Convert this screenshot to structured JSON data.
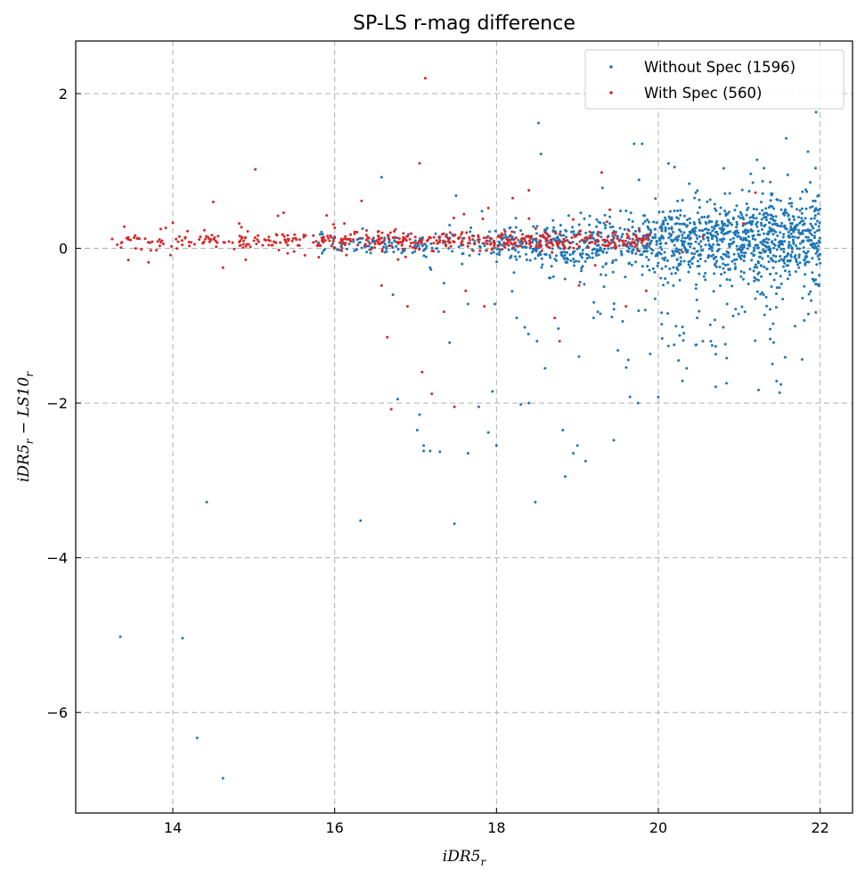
{
  "chart_data": {
    "type": "scatter",
    "title": "SP-LS r-mag difference",
    "xlabel_main": "iDR5",
    "xlabel_sub": "r",
    "ylabel_parts": [
      "iDR5",
      "r",
      " − LS10",
      "r"
    ],
    "xlim": [
      12.8,
      22.4
    ],
    "ylim": [
      -7.3,
      2.68
    ],
    "xticks": [
      14,
      16,
      18,
      20,
      22
    ],
    "yticks": [
      2,
      0,
      -2,
      -4,
      -6
    ],
    "xtick_labels": [
      "14",
      "16",
      "18",
      "20",
      "22"
    ],
    "ytick_labels": [
      "2",
      "0",
      "−2",
      "−4",
      "−6"
    ],
    "grid": true,
    "legend_position": "top-right",
    "series": [
      {
        "name": "Without Spec (1596)",
        "color": "#1f77b4",
        "count": 1596,
        "points": [
          [
            13.35,
            -5.02
          ],
          [
            14.12,
            -5.04
          ],
          [
            14.3,
            -6.33
          ],
          [
            14.42,
            -3.28
          ],
          [
            14.62,
            -6.85
          ],
          [
            16.32,
            -3.52
          ],
          [
            17.48,
            -3.56
          ],
          [
            18.48,
            -3.28
          ],
          [
            18.85,
            -2.95
          ],
          [
            17.02,
            -2.35
          ],
          [
            17.1,
            -2.55
          ],
          [
            17.1,
            -2.62
          ],
          [
            17.18,
            -2.62
          ],
          [
            17.3,
            -2.63
          ],
          [
            17.05,
            -2.15
          ],
          [
            17.65,
            -2.65
          ],
          [
            17.78,
            -2.05
          ],
          [
            17.9,
            -2.38
          ],
          [
            18.0,
            -2.55
          ],
          [
            17.95,
            -1.85
          ],
          [
            18.3,
            -2.02
          ],
          [
            18.4,
            -2.0
          ],
          [
            16.78,
            -1.95
          ],
          [
            17.42,
            -1.22
          ],
          [
            17.65,
            -0.72
          ],
          [
            17.98,
            -0.72
          ],
          [
            18.25,
            -0.9
          ],
          [
            16.72,
            -0.6
          ],
          [
            16.58,
            0.92
          ],
          [
            17.42,
            0.3
          ],
          [
            17.5,
            0.68
          ],
          [
            17.82,
            0.48
          ],
          [
            17.18,
            -0.25
          ],
          [
            17.35,
            -0.45
          ],
          [
            18.52,
            1.62
          ],
          [
            18.55,
            1.22
          ],
          [
            19.7,
            1.35
          ],
          [
            19.8,
            1.35
          ],
          [
            20.2,
            1.05
          ],
          [
            21.58,
            1.42
          ],
          [
            21.95,
            1.76
          ],
          [
            21.85,
            1.25
          ],
          [
            21.6,
            0.95
          ],
          [
            21.95,
            0.5
          ],
          [
            21.42,
            -0.25
          ],
          [
            21.2,
            -0.65
          ],
          [
            20.35,
            -1.55
          ],
          [
            20.25,
            -1.45
          ],
          [
            20.0,
            -1.92
          ],
          [
            19.75,
            -2.0
          ],
          [
            19.65,
            -1.92
          ],
          [
            19.45,
            -2.48
          ],
          [
            19.0,
            -2.55
          ],
          [
            19.1,
            -2.75
          ],
          [
            18.95,
            -2.65
          ],
          [
            18.82,
            -2.35
          ],
          [
            19.5,
            -1.32
          ],
          [
            19.2,
            -0.9
          ],
          [
            19.02,
            -1.4
          ],
          [
            18.6,
            -1.55
          ],
          [
            18.5,
            -1.2
          ],
          [
            18.35,
            -1.02
          ],
          [
            20.55,
            -1.2
          ],
          [
            20.65,
            -1.2
          ],
          [
            20.85,
            -0.72
          ],
          [
            20.48,
            -0.9
          ],
          [
            21.05,
            -0.4
          ],
          [
            21.3,
            -0.6
          ],
          [
            21.7,
            -0.3
          ],
          [
            21.8,
            -0.15
          ]
        ]
      },
      {
        "name": "With Spec (560)",
        "color": "#d62728",
        "count": 560,
        "points": [
          [
            13.25,
            0.12
          ],
          [
            13.4,
            0.28
          ],
          [
            13.45,
            -0.15
          ],
          [
            13.7,
            -0.18
          ],
          [
            13.85,
            0.25
          ],
          [
            14.0,
            0.33
          ],
          [
            14.2,
            0.08
          ],
          [
            14.45,
            0.12
          ],
          [
            14.5,
            0.6
          ],
          [
            14.62,
            -0.25
          ],
          [
            15.02,
            1.02
          ],
          [
            15.3,
            0.42
          ],
          [
            16.12,
            0.32
          ],
          [
            16.58,
            -0.48
          ],
          [
            16.65,
            -1.15
          ],
          [
            16.7,
            -2.08
          ],
          [
            16.9,
            -0.75
          ],
          [
            17.05,
            1.1
          ],
          [
            17.08,
            -1.6
          ],
          [
            17.12,
            2.2
          ],
          [
            17.2,
            -1.88
          ],
          [
            17.35,
            -0.82
          ],
          [
            17.48,
            -2.05
          ],
          [
            17.62,
            -0.55
          ],
          [
            17.85,
            -0.75
          ],
          [
            17.9,
            0.52
          ],
          [
            18.2,
            0.65
          ],
          [
            18.4,
            0.75
          ],
          [
            18.72,
            -0.9
          ],
          [
            18.78,
            -1.2
          ],
          [
            19.02,
            -0.48
          ],
          [
            19.22,
            -0.22
          ],
          [
            19.3,
            0.98
          ],
          [
            19.4,
            0.5
          ],
          [
            19.6,
            -0.75
          ],
          [
            19.85,
            -0.55
          ],
          [
            21.2,
            0.72
          ],
          [
            21.05,
            0.32
          ],
          [
            20.55,
            0.15
          ],
          [
            20.3,
            -0.05
          ]
        ]
      }
    ]
  },
  "legend": {
    "items": [
      {
        "label": "Without Spec (1596)",
        "color": "#1f77b4"
      },
      {
        "label": "With Spec (560)",
        "color": "#d62728"
      }
    ]
  }
}
